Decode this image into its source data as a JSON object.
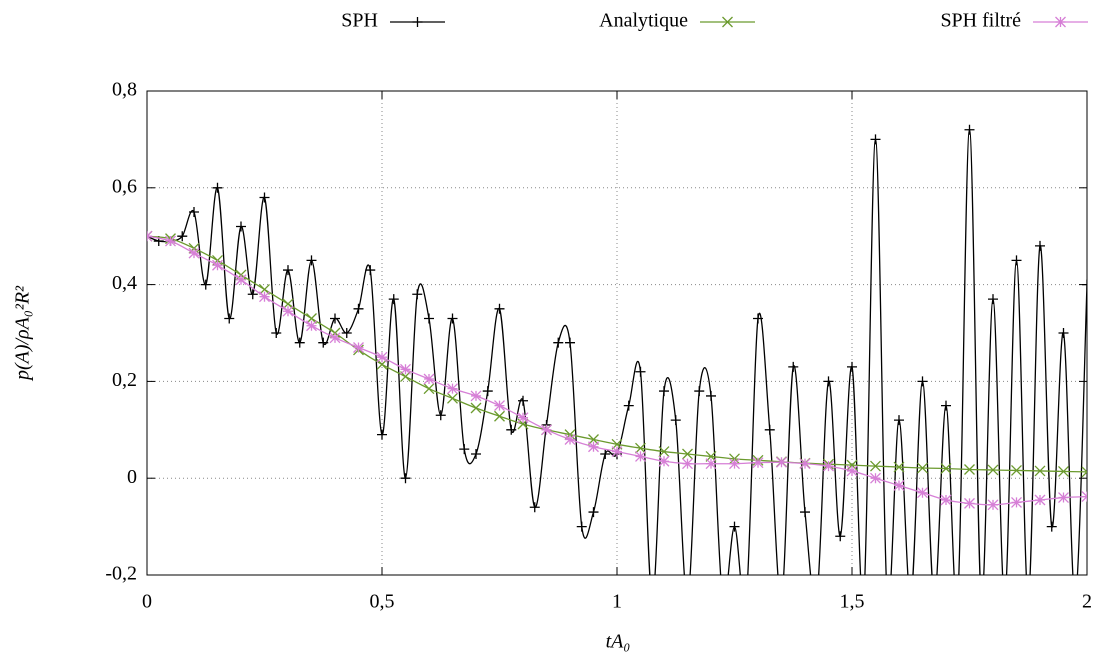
{
  "chart_data": {
    "type": "line",
    "x_label": "tA₀",
    "y_label": "p(A)/ρA₀²R²",
    "xlim": [
      0,
      2
    ],
    "ylim": [
      -0.2,
      0.8
    ],
    "xticks": [
      0,
      {
        "value": 0.5,
        "label": "0,5"
      },
      1,
      {
        "value": 1.5,
        "label": "1,5"
      },
      2
    ],
    "yticks": [
      {
        "value": -0.2,
        "label": "-0,2"
      },
      0,
      {
        "value": 0.2,
        "label": "0,2"
      },
      {
        "value": 0.4,
        "label": "0,4"
      },
      {
        "value": 0.6,
        "label": "0,6"
      },
      {
        "value": 0.8,
        "label": "0,8"
      }
    ],
    "grid": true,
    "legend": "top",
    "series": [
      {
        "name": "SPH",
        "color": "#000000",
        "marker": "plus",
        "x": [
          0,
          0.025,
          0.05,
          0.075,
          0.1,
          0.125,
          0.15,
          0.175,
          0.2,
          0.225,
          0.25,
          0.275,
          0.3,
          0.325,
          0.35,
          0.375,
          0.4,
          0.425,
          0.45,
          0.475,
          0.5,
          0.525,
          0.55,
          0.575,
          0.6,
          0.625,
          0.65,
          0.675,
          0.7,
          0.725,
          0.75,
          0.775,
          0.8,
          0.825,
          0.85,
          0.875,
          0.9,
          0.925,
          0.95,
          0.975,
          1,
          1.025,
          1.05,
          1.075,
          1.1,
          1.125,
          1.15,
          1.175,
          1.2,
          1.225,
          1.25,
          1.275,
          1.3,
          1.325,
          1.35,
          1.375,
          1.4,
          1.425,
          1.45,
          1.475,
          1.5,
          1.525,
          1.55,
          1.575,
          1.6,
          1.625,
          1.65,
          1.675,
          1.7,
          1.725,
          1.75,
          1.775,
          1.8,
          1.825,
          1.85,
          1.875,
          1.9,
          1.925,
          1.95,
          1.975,
          2
        ],
        "values": [
          0.5,
          0.49,
          0.49,
          0.5,
          0.55,
          0.4,
          0.6,
          0.33,
          0.52,
          0.38,
          0.58,
          0.3,
          0.43,
          0.28,
          0.45,
          0.28,
          0.33,
          0.3,
          0.35,
          0.43,
          0.09,
          0.37,
          0.0,
          0.38,
          0.33,
          0.13,
          0.33,
          0.06,
          0.05,
          0.18,
          0.35,
          0.1,
          0.16,
          -0.06,
          0.11,
          0.28,
          0.28,
          -0.1,
          -0.07,
          0.05,
          0.05,
          0.15,
          0.22,
          -0.25,
          0.18,
          0.12,
          -0.25,
          0.18,
          0.17,
          -0.25,
          -0.1,
          -0.25,
          0.33,
          0.1,
          -0.25,
          0.23,
          -0.07,
          -0.25,
          0.2,
          -0.12,
          0.23,
          -0.25,
          0.7,
          -0.25,
          0.12,
          -0.25,
          0.2,
          -0.25,
          0.15,
          -0.25,
          0.72,
          -0.25,
          0.37,
          -0.25,
          0.45,
          -0.25,
          0.48,
          -0.1,
          0.3,
          -0.25,
          0.4
        ]
      },
      {
        "name": "Analytique",
        "color": "#6b9a2e",
        "marker": "cross",
        "x": [
          0,
          0.05,
          0.1,
          0.15,
          0.2,
          0.25,
          0.3,
          0.35,
          0.4,
          0.45,
          0.5,
          0.55,
          0.6,
          0.65,
          0.7,
          0.75,
          0.8,
          0.85,
          0.9,
          0.95,
          1,
          1.05,
          1.1,
          1.15,
          1.2,
          1.25,
          1.3,
          1.35,
          1.4,
          1.45,
          1.5,
          1.55,
          1.6,
          1.65,
          1.7,
          1.75,
          1.8,
          1.85,
          1.9,
          1.95,
          2
        ],
        "values": [
          0.5,
          0.495,
          0.475,
          0.45,
          0.42,
          0.39,
          0.36,
          0.33,
          0.3,
          0.265,
          0.235,
          0.21,
          0.185,
          0.165,
          0.145,
          0.128,
          0.112,
          0.1,
          0.09,
          0.08,
          0.07,
          0.062,
          0.055,
          0.05,
          0.045,
          0.04,
          0.037,
          0.034,
          0.031,
          0.029,
          0.027,
          0.025,
          0.023,
          0.021,
          0.02,
          0.018,
          0.017,
          0.016,
          0.015,
          0.014,
          0.013
        ]
      },
      {
        "name": "SPH filtré",
        "color": "#d67fd6",
        "marker": "star",
        "x": [
          0,
          0.05,
          0.1,
          0.15,
          0.2,
          0.25,
          0.3,
          0.35,
          0.4,
          0.45,
          0.5,
          0.55,
          0.6,
          0.65,
          0.7,
          0.75,
          0.8,
          0.85,
          0.9,
          0.95,
          1,
          1.05,
          1.1,
          1.15,
          1.2,
          1.25,
          1.3,
          1.35,
          1.4,
          1.45,
          1.5,
          1.55,
          1.6,
          1.65,
          1.7,
          1.75,
          1.8,
          1.85,
          1.9,
          1.95,
          2
        ],
        "values": [
          0.5,
          0.49,
          0.465,
          0.44,
          0.41,
          0.375,
          0.345,
          0.315,
          0.29,
          0.27,
          0.25,
          0.225,
          0.205,
          0.185,
          0.17,
          0.15,
          0.125,
          0.1,
          0.08,
          0.065,
          0.055,
          0.045,
          0.035,
          0.03,
          0.03,
          0.03,
          0.032,
          0.033,
          0.03,
          0.025,
          0.015,
          0,
          -0.015,
          -0.03,
          -0.045,
          -0.052,
          -0.055,
          -0.05,
          -0.045,
          -0.04,
          -0.038
        ]
      }
    ]
  }
}
